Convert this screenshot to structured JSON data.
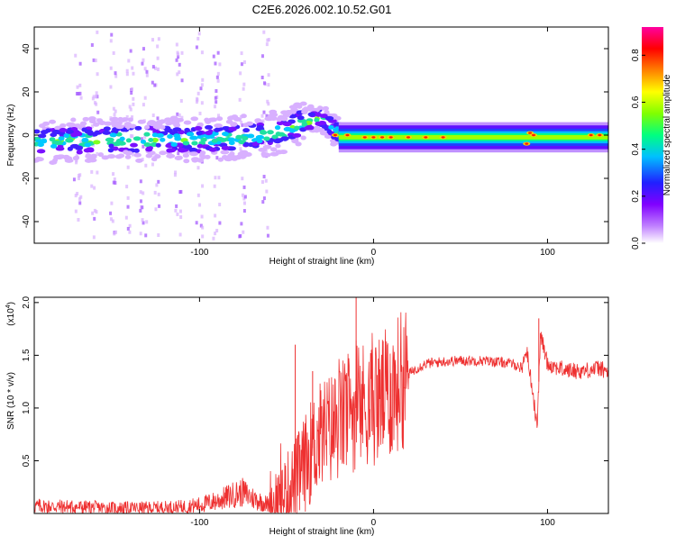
{
  "chart_data": [
    {
      "type": "heatmap",
      "title": "C2E6.2026.002.10.52.G01",
      "xlabel": "Height of straight line (km)",
      "ylabel": "Frequency (Hz)",
      "xlim": [
        -195,
        135
      ],
      "ylim": [
        -50,
        50
      ],
      "x_ticks": [
        -100,
        0,
        100
      ],
      "x_tick_labels": [
        "-100",
        "0",
        "100"
      ],
      "y_ticks": [
        -40,
        -20,
        0,
        20,
        40
      ],
      "y_tick_labels": [
        "-40",
        "-20",
        "0",
        "20",
        "40"
      ],
      "colorbar": {
        "label": "Normalized spectral amplitude",
        "range": [
          0,
          0.92
        ],
        "ticks": [
          0.0,
          0.2,
          0.4,
          0.6,
          0.8
        ],
        "tick_labels": [
          "0.0",
          "0.2",
          "0.4",
          "0.6",
          "0.8"
        ],
        "colors": [
          "#ffffff",
          "#c080ff",
          "#8000ff",
          "#2020ff",
          "#00c0ff",
          "#00ff80",
          "#80ff00",
          "#ffff00",
          "#ff8000",
          "#ff0000",
          "#ff00a0"
        ]
      },
      "ridge": {
        "description_x_km": [
          -195,
          -150,
          -100,
          -70,
          -50,
          -40,
          -30,
          -22,
          -15,
          0,
          20,
          50,
          85,
          90,
          95,
          110,
          135
        ],
        "center_hz": [
          -3,
          -2,
          -2,
          -1,
          2,
          6,
          8,
          2,
          0,
          -1,
          -2,
          -1,
          -1,
          -1,
          0,
          0,
          0
        ]
      }
    },
    {
      "type": "line",
      "xlabel": "Height of straight line (km)",
      "ylabel": "SNR (10 * v/v)",
      "y_multiplier_label": "(x10",
      "y_multiplier_exp": "4",
      "y_multiplier_close": ")",
      "xlim": [
        -195,
        135
      ],
      "ylim": [
        0,
        2.05
      ],
      "x_ticks": [
        -100,
        0,
        100
      ],
      "x_tick_labels": [
        "-100",
        "0",
        "100"
      ],
      "y_ticks": [
        0.5,
        1.0,
        1.5,
        2.0
      ],
      "y_tick_labels": [
        "0.5",
        "1.0",
        "1.5",
        "2.0"
      ],
      "series": [
        {
          "name": "SNR",
          "color": "#ee3030",
          "x": [
            -195,
            -170,
            -150,
            -130,
            -110,
            -100,
            -90,
            -80,
            -75,
            -70,
            -60,
            -55,
            -50,
            -45,
            -40,
            -35,
            -30,
            -25,
            -20,
            -15,
            -10,
            -5,
            0,
            5,
            10,
            15,
            20,
            25,
            30,
            40,
            50,
            60,
            70,
            80,
            85,
            88,
            92,
            94,
            96,
            100,
            110,
            120,
            130,
            135
          ],
          "y": [
            0.07,
            0.06,
            0.05,
            0.05,
            0.06,
            0.08,
            0.12,
            0.18,
            0.2,
            0.15,
            0.08,
            0.1,
            0.18,
            0.3,
            0.45,
            0.62,
            0.75,
            0.8,
            0.85,
            0.95,
            1.0,
            1.05,
            1.05,
            1.1,
            1.15,
            1.25,
            1.32,
            1.38,
            1.42,
            1.44,
            1.45,
            1.45,
            1.44,
            1.42,
            1.38,
            1.55,
            1.1,
            0.8,
            1.7,
            1.42,
            1.36,
            1.35,
            1.38,
            1.33
          ]
        }
      ],
      "annotations": [
        {
          "x": -45,
          "y": 1.6
        },
        {
          "x": -35,
          "y": 1.35
        },
        {
          "x": -10,
          "y": 2.05
        },
        {
          "x": 8,
          "y": 1.6
        },
        {
          "x": 95,
          "y": 1.85
        }
      ]
    }
  ]
}
